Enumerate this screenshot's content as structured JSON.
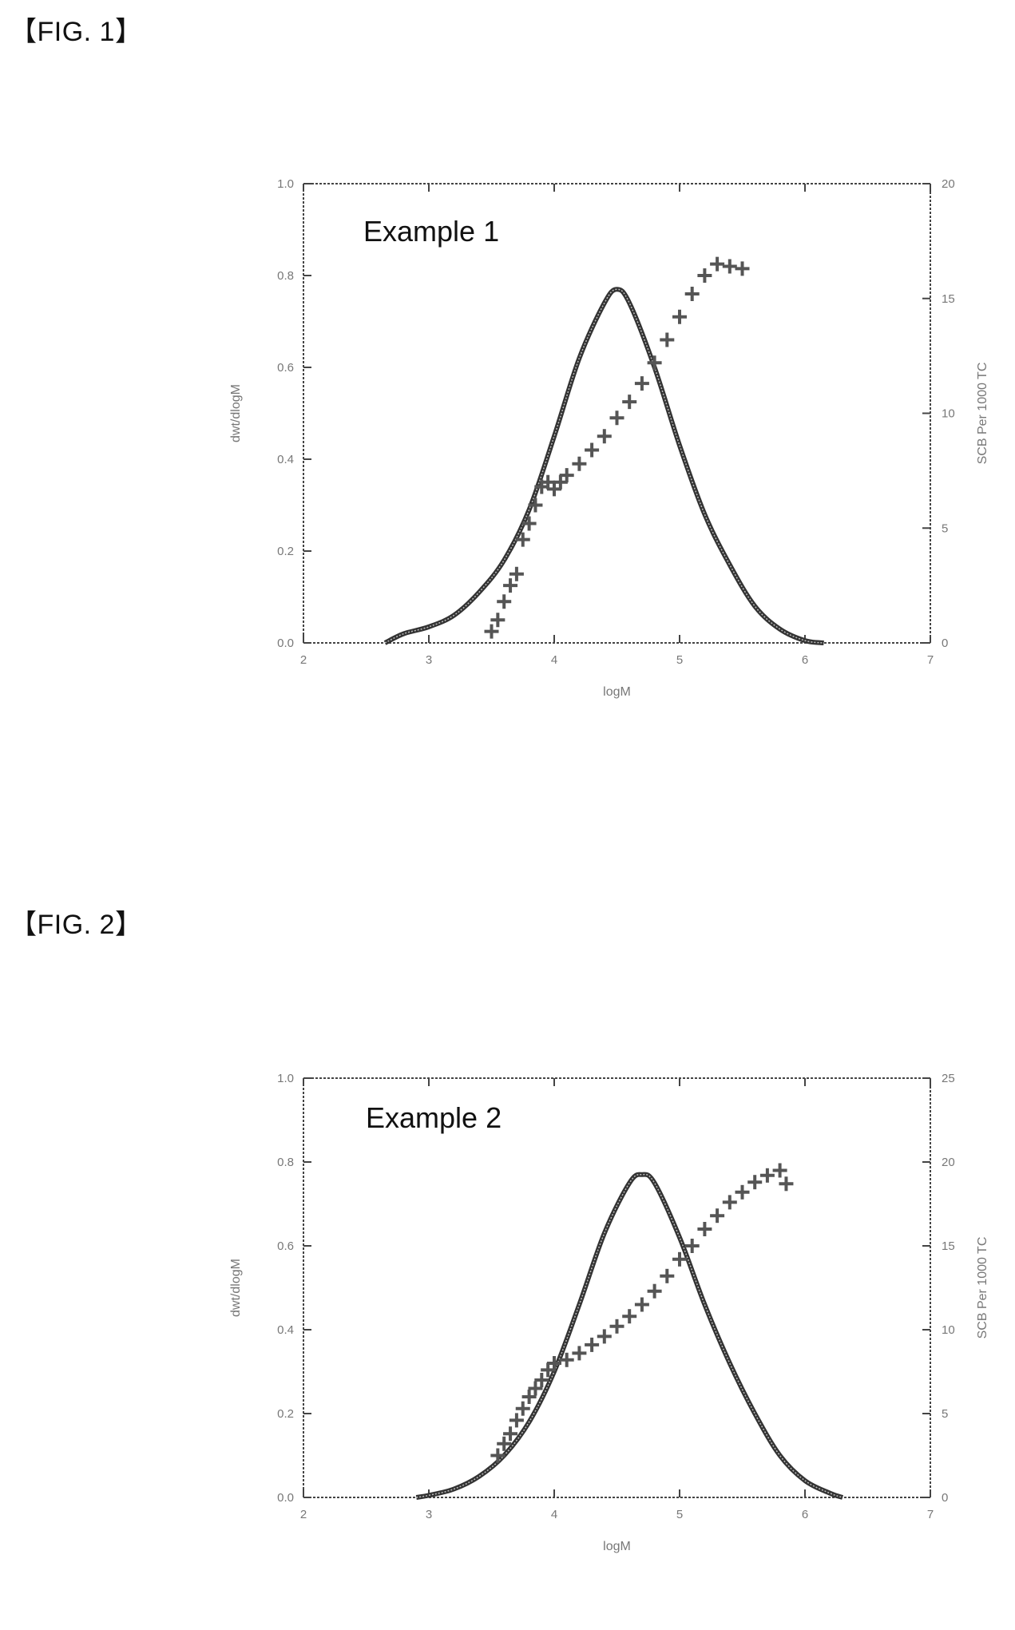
{
  "figures": [
    {
      "label": "【FIG. 1】"
    },
    {
      "label": "【FIG. 2】"
    }
  ],
  "chart_data": [
    {
      "type": "line",
      "annotation": "Example 1",
      "xlabel": "logM",
      "ylabel": "dwt/dlogM",
      "y2label": "SCB Per 1000 TC",
      "xlim": [
        2,
        7
      ],
      "ylim": [
        0,
        1.0
      ],
      "y2lim": [
        0,
        20
      ],
      "xticks": [
        "2",
        "3",
        "4",
        "5",
        "6",
        "7"
      ],
      "yticks": [
        "0.0",
        "0.2",
        "0.4",
        "0.6",
        "0.8",
        "1.0"
      ],
      "y2ticks": [
        "0",
        "5",
        "10",
        "15",
        "20"
      ],
      "grid": false,
      "series": [
        {
          "axis": "left",
          "style": "line",
          "x": [
            2.65,
            2.8,
            3.0,
            3.2,
            3.4,
            3.6,
            3.8,
            4.0,
            4.2,
            4.4,
            4.5,
            4.6,
            4.8,
            5.0,
            5.2,
            5.4,
            5.6,
            5.8,
            6.0,
            6.15
          ],
          "y": [
            0.0,
            0.02,
            0.035,
            0.06,
            0.11,
            0.18,
            0.29,
            0.45,
            0.62,
            0.74,
            0.77,
            0.74,
            0.6,
            0.43,
            0.28,
            0.17,
            0.08,
            0.03,
            0.005,
            0.0
          ]
        },
        {
          "axis": "right",
          "style": "markers",
          "x": [
            3.5,
            3.55,
            3.6,
            3.65,
            3.7,
            3.75,
            3.8,
            3.85,
            3.9,
            3.95,
            4.0,
            4.05,
            4.1,
            4.2,
            4.3,
            4.4,
            4.5,
            4.6,
            4.7,
            4.8,
            4.9,
            5.0,
            5.1,
            5.2,
            5.3,
            5.4,
            5.5
          ],
          "y": [
            0.5,
            1.0,
            1.8,
            2.5,
            3.0,
            4.5,
            5.2,
            6.0,
            6.8,
            7.0,
            6.7,
            7.0,
            7.3,
            7.8,
            8.4,
            9.0,
            9.8,
            10.5,
            11.3,
            12.2,
            13.2,
            14.2,
            15.2,
            16.0,
            16.5,
            16.4,
            16.3
          ]
        }
      ]
    },
    {
      "type": "line",
      "annotation": "Example 2",
      "xlabel": "logM",
      "ylabel": "dwt/dlogM",
      "y2label": "SCB Per 1000 TC",
      "xlim": [
        2,
        7
      ],
      "ylim": [
        0,
        1.0
      ],
      "y2lim": [
        0,
        25
      ],
      "xticks": [
        "2",
        "3",
        "4",
        "5",
        "6",
        "7"
      ],
      "yticks": [
        "0.0",
        "0.2",
        "0.4",
        "0.6",
        "0.8",
        "1.0"
      ],
      "y2ticks": [
        "0",
        "5",
        "10",
        "15",
        "20",
        "25"
      ],
      "grid": false,
      "series": [
        {
          "axis": "left",
          "style": "line",
          "x": [
            2.9,
            3.0,
            3.2,
            3.4,
            3.6,
            3.8,
            4.0,
            4.2,
            4.4,
            4.6,
            4.7,
            4.8,
            5.0,
            5.2,
            5.4,
            5.6,
            5.8,
            6.0,
            6.2,
            6.3
          ],
          "y": [
            0.0,
            0.005,
            0.02,
            0.05,
            0.1,
            0.18,
            0.3,
            0.46,
            0.63,
            0.75,
            0.77,
            0.75,
            0.62,
            0.46,
            0.32,
            0.2,
            0.1,
            0.04,
            0.01,
            0.0
          ]
        },
        {
          "axis": "right",
          "style": "markers",
          "x": [
            3.55,
            3.6,
            3.65,
            3.7,
            3.75,
            3.8,
            3.85,
            3.9,
            3.95,
            4.0,
            4.1,
            4.2,
            4.3,
            4.4,
            4.5,
            4.6,
            4.7,
            4.8,
            4.9,
            5.0,
            5.1,
            5.2,
            5.3,
            5.4,
            5.5,
            5.6,
            5.7,
            5.8,
            5.85
          ],
          "y": [
            2.5,
            3.2,
            3.8,
            4.6,
            5.3,
            6.0,
            6.5,
            7.0,
            7.6,
            8.0,
            8.2,
            8.6,
            9.1,
            9.6,
            10.2,
            10.8,
            11.5,
            12.3,
            13.2,
            14.2,
            15.0,
            16.0,
            16.8,
            17.6,
            18.2,
            18.8,
            19.2,
            19.5,
            18.7
          ]
        }
      ]
    }
  ]
}
